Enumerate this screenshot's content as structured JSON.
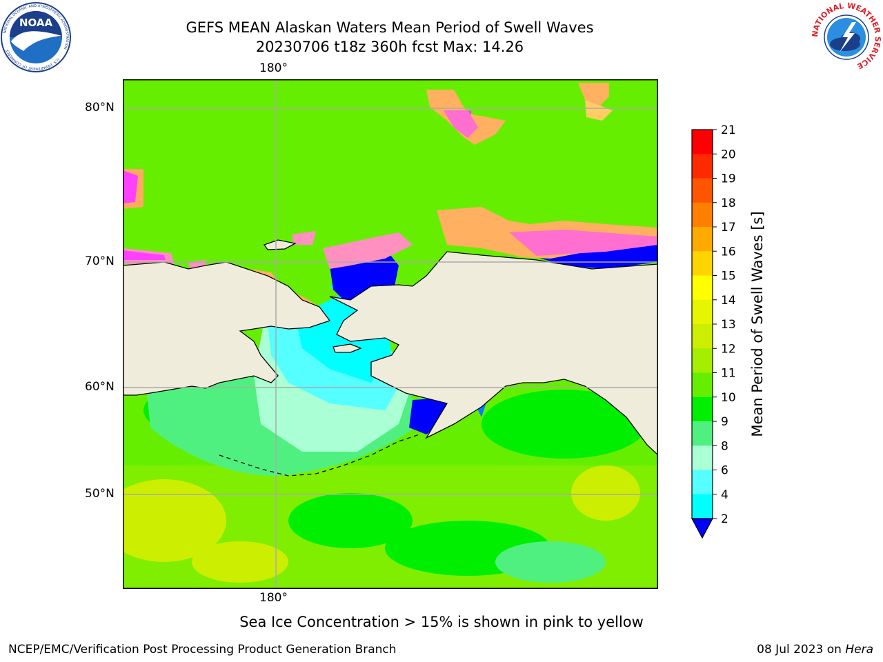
{
  "title": {
    "line1": "GEFS MEAN Alaskan Waters Mean Period of Swell Waves",
    "line2": "20230706 t18z 360h fcst   Max: 14.26"
  },
  "map": {
    "lat_labels": [
      "80°N",
      "70°N",
      "60°N",
      "50°N"
    ],
    "lon_label_top": "180°",
    "lon_label_bottom": "180°",
    "land_color": "#efecdc"
  },
  "colorbar": {
    "label": "Mean Period of Swell Waves [s]",
    "ticks": [
      "21",
      "20",
      "19",
      "18",
      "17",
      "16",
      "15",
      "14",
      "13",
      "12",
      "11",
      "10",
      "9",
      "8",
      "6",
      "4",
      "2"
    ],
    "colors": [
      "#ff0000",
      "#ff2a00",
      "#ff5500",
      "#ff7f00",
      "#ffaa00",
      "#ffd400",
      "#ffff00",
      "#e6f500",
      "#ccee00",
      "#a5ee00",
      "#66ee00",
      "#00ee00",
      "#50f080",
      "#aaffd4",
      "#55ffff",
      "#00ffff",
      "#007fff",
      "#0000ff"
    ]
  },
  "ice_note": "Sea Ice Concentration > 15% is shown in pink to yellow",
  "footer": {
    "credit": "NCEP/EMC/Verification Post Processing Product Generation Branch",
    "date_prefix": "08 Jul 2023 on ",
    "host": "Hera"
  },
  "logos": {
    "noaa_text": "NOAA",
    "noaa_ring_text": "NATIONAL OCEANIC AND ATMOSPHERIC ADMINISTRATION",
    "noaa_ring_bottom": "U.S. DEPARTMENT OF COMMERCE",
    "nws_ring_text": "NATIONAL WEATHER SERVICE"
  }
}
